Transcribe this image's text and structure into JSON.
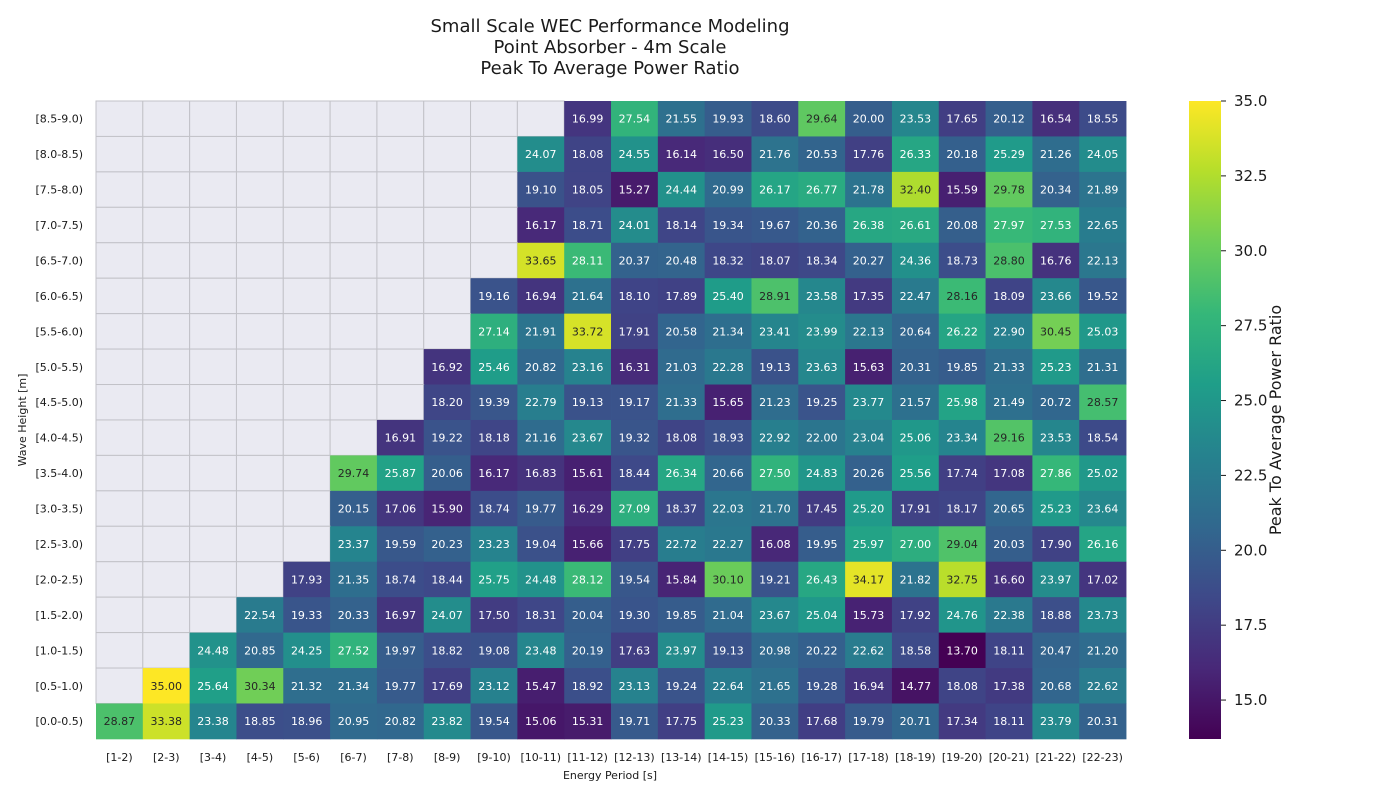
{
  "chart_data": {
    "type": "heatmap",
    "title": [
      "Small Scale WEC Performance Modeling",
      "Point Absorber - 4m Scale",
      "Peak To Average Power Ratio"
    ],
    "xlabel": "Energy Period [s]",
    "ylabel": "Wave Height [m]",
    "colorbar_label": "Peak To Average Power Ratio",
    "colormap": "viridis",
    "vmin": 13.7,
    "vmax": 35.0,
    "colorbar_ticks": [
      "15.0",
      "17.5",
      "20.0",
      "22.5",
      "25.0",
      "27.5",
      "30.0",
      "32.5",
      "35.0"
    ],
    "colorbar_tick_values": [
      15.0,
      17.5,
      20.0,
      22.5,
      25.0,
      27.5,
      30.0,
      32.5,
      35.0
    ],
    "empty_color": "#eaeaf2",
    "x_categories": [
      "[1-2)",
      "[2-3)",
      "[3-4)",
      "[4-5)",
      "[5-6)",
      "[6-7)",
      "[7-8)",
      "[8-9)",
      "[9-10)",
      "[10-11)",
      "[11-12)",
      "[12-13)",
      "[13-14)",
      "[14-15)",
      "[15-16)",
      "[16-17)",
      "[17-18)",
      "[18-19)",
      "[19-20)",
      "[20-21)",
      "[21-22)",
      "[22-23)"
    ],
    "y_categories": [
      "[8.5-9.0)",
      "[8.0-8.5)",
      "[7.5-8.0)",
      "[7.0-7.5)",
      "[6.5-7.0)",
      "[6.0-6.5)",
      "[5.5-6.0)",
      "[5.0-5.5)",
      "[4.5-5.0)",
      "[4.0-4.5)",
      "[3.5-4.0)",
      "[3.0-3.5)",
      "[2.5-3.0)",
      "[2.0-2.5)",
      "[1.5-2.0)",
      "[1.0-1.5)",
      "[0.5-1.0)",
      "[0.0-0.5)"
    ],
    "values": [
      [
        null,
        null,
        null,
        null,
        null,
        null,
        null,
        null,
        null,
        null,
        16.99,
        27.54,
        21.55,
        19.93,
        18.6,
        29.64,
        20.0,
        23.53,
        17.65,
        20.12,
        16.54,
        18.55
      ],
      [
        null,
        null,
        null,
        null,
        null,
        null,
        null,
        null,
        null,
        24.07,
        18.08,
        24.55,
        16.14,
        16.5,
        21.76,
        20.53,
        17.76,
        26.33,
        20.18,
        25.29,
        21.26,
        24.05
      ],
      [
        null,
        null,
        null,
        null,
        null,
        null,
        null,
        null,
        null,
        19.1,
        18.05,
        15.27,
        24.44,
        20.99,
        26.17,
        26.77,
        21.78,
        32.4,
        15.59,
        29.78,
        20.34,
        21.89
      ],
      [
        null,
        null,
        null,
        null,
        null,
        null,
        null,
        null,
        null,
        16.17,
        18.71,
        24.01,
        18.14,
        19.34,
        19.67,
        20.36,
        26.38,
        26.61,
        20.08,
        27.97,
        27.53,
        22.65
      ],
      [
        null,
        null,
        null,
        null,
        null,
        null,
        null,
        null,
        null,
        33.65,
        28.11,
        20.37,
        20.48,
        18.32,
        18.07,
        18.34,
        20.27,
        24.36,
        18.73,
        28.8,
        16.76,
        22.13
      ],
      [
        null,
        null,
        null,
        null,
        null,
        null,
        null,
        null,
        19.16,
        16.94,
        21.64,
        18.1,
        17.89,
        25.4,
        28.91,
        23.58,
        17.35,
        22.47,
        28.16,
        18.09,
        23.66,
        19.52
      ],
      [
        null,
        null,
        null,
        null,
        null,
        null,
        null,
        null,
        27.14,
        21.91,
        33.72,
        17.91,
        20.58,
        21.34,
        23.41,
        23.99,
        22.13,
        20.64,
        26.22,
        22.9,
        30.45,
        25.03
      ],
      [
        null,
        null,
        null,
        null,
        null,
        null,
        null,
        16.92,
        25.46,
        20.82,
        23.16,
        16.31,
        21.03,
        22.28,
        19.13,
        23.63,
        15.63,
        20.31,
        19.85,
        21.33,
        25.23,
        21.31
      ],
      [
        null,
        null,
        null,
        null,
        null,
        null,
        null,
        18.2,
        19.39,
        22.79,
        19.13,
        19.17,
        21.33,
        15.65,
        21.23,
        19.25,
        23.77,
        21.57,
        25.98,
        21.49,
        20.72,
        28.57
      ],
      [
        null,
        null,
        null,
        null,
        null,
        null,
        16.91,
        19.22,
        18.18,
        21.16,
        23.67,
        19.32,
        18.08,
        18.93,
        22.92,
        22.0,
        23.04,
        25.06,
        23.34,
        29.16,
        23.53,
        18.54
      ],
      [
        null,
        null,
        null,
        null,
        null,
        29.74,
        25.87,
        20.06,
        16.17,
        16.83,
        15.61,
        18.44,
        26.34,
        20.66,
        27.5,
        24.83,
        20.26,
        25.56,
        17.74,
        17.08,
        27.86,
        25.02
      ],
      [
        null,
        null,
        null,
        null,
        null,
        20.15,
        17.06,
        15.9,
        18.74,
        19.77,
        16.29,
        27.09,
        18.37,
        22.03,
        21.7,
        17.45,
        25.2,
        17.91,
        18.17,
        20.65,
        25.23,
        23.64
      ],
      [
        null,
        null,
        null,
        null,
        null,
        23.37,
        19.59,
        20.23,
        23.23,
        19.04,
        15.66,
        17.75,
        22.72,
        22.27,
        16.08,
        19.95,
        25.97,
        27.0,
        29.04,
        20.03,
        17.9,
        26.16
      ],
      [
        null,
        null,
        null,
        null,
        17.93,
        21.35,
        18.74,
        18.44,
        25.75,
        24.48,
        28.12,
        19.54,
        15.84,
        30.1,
        19.21,
        26.43,
        34.17,
        21.82,
        32.75,
        16.6,
        23.97,
        17.02
      ],
      [
        null,
        null,
        null,
        22.54,
        19.33,
        20.33,
        16.97,
        24.07,
        17.5,
        18.31,
        20.04,
        19.3,
        19.85,
        21.04,
        23.67,
        25.04,
        15.73,
        17.92,
        24.76,
        22.38,
        18.88,
        23.73
      ],
      [
        null,
        null,
        24.48,
        20.85,
        24.25,
        27.52,
        19.97,
        18.82,
        19.08,
        23.48,
        20.19,
        17.63,
        23.97,
        19.13,
        20.98,
        20.22,
        22.62,
        18.58,
        13.7,
        18.11,
        20.47,
        21.2
      ],
      [
        null,
        35.0,
        25.64,
        30.34,
        21.32,
        21.34,
        19.77,
        17.69,
        23.12,
        15.47,
        18.92,
        23.13,
        19.24,
        22.64,
        21.65,
        19.28,
        16.94,
        14.77,
        18.08,
        17.38,
        20.68,
        22.62
      ],
      [
        28.87,
        33.38,
        23.38,
        18.85,
        18.96,
        20.95,
        20.82,
        23.82,
        19.54,
        15.06,
        15.31,
        19.71,
        17.75,
        25.23,
        20.33,
        17.68,
        19.79,
        20.71,
        17.34,
        18.11,
        23.79,
        20.31
      ]
    ]
  }
}
